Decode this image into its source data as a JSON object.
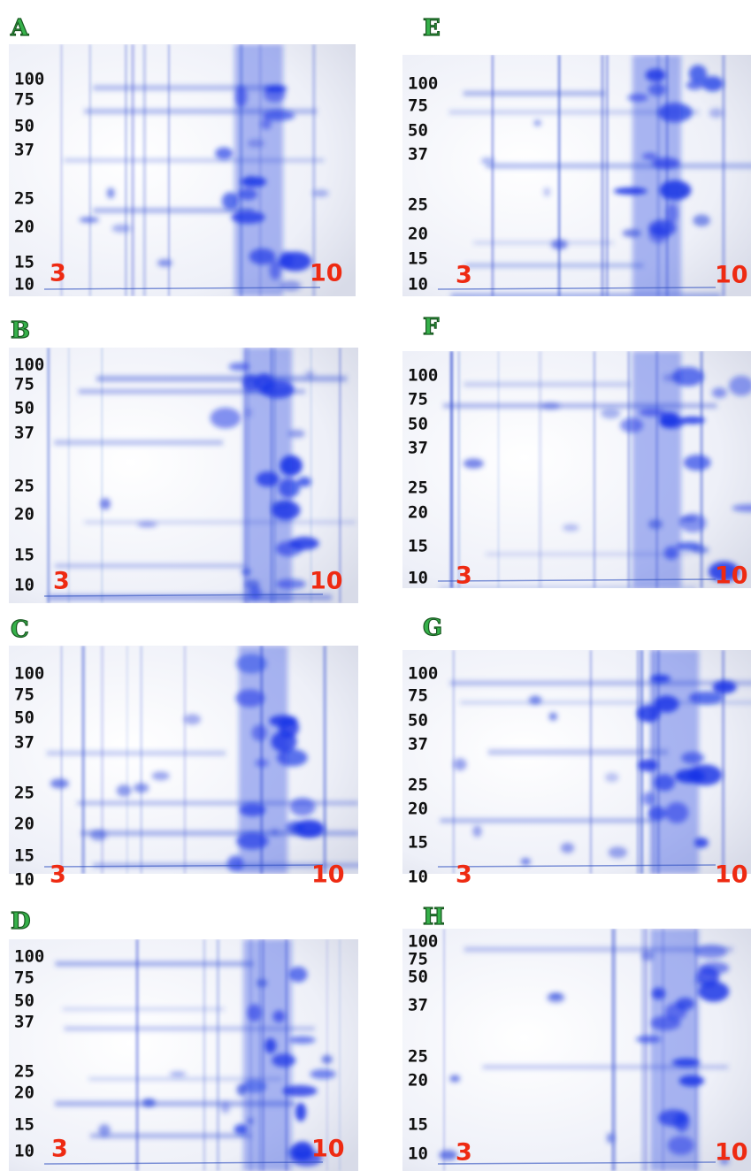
{
  "panels": [
    {
      "label": "A",
      "markers": [
        "100",
        "75",
        "50",
        "37",
        "25",
        "20",
        "15",
        "10"
      ],
      "ph_low": "3",
      "ph_high": "10"
    },
    {
      "label": "B",
      "markers": [
        "100",
        "75",
        "50",
        "37",
        "25",
        "20",
        "15",
        "10"
      ],
      "ph_low": "3",
      "ph_high": "10"
    },
    {
      "label": "C",
      "markers": [
        "100",
        "75",
        "50",
        "37",
        "25",
        "20",
        "15",
        "10"
      ],
      "ph_low": "3",
      "ph_high": "10"
    },
    {
      "label": "D",
      "markers": [
        "100",
        "75",
        "50",
        "37",
        "25",
        "20",
        "15",
        "10"
      ],
      "ph_low": "3",
      "ph_high": "10"
    },
    {
      "label": "E",
      "markers": [
        "100",
        "75",
        "50",
        "37",
        "25",
        "20",
        "15",
        "10"
      ],
      "ph_low": "3",
      "ph_high": "10"
    },
    {
      "label": "F",
      "markers": [
        "100",
        "75",
        "50",
        "37",
        "25",
        "20",
        "15",
        "10"
      ],
      "ph_low": "3",
      "ph_high": "10"
    },
    {
      "label": "G",
      "markers": [
        "100",
        "75",
        "50",
        "37",
        "25",
        "20",
        "15",
        "10"
      ],
      "ph_low": "3",
      "ph_high": "10"
    },
    {
      "label": "H",
      "markers": [
        "100",
        "75",
        "50",
        "37",
        "25",
        "20",
        "15",
        "10"
      ],
      "ph_low": "3",
      "ph_high": "10"
    }
  ]
}
